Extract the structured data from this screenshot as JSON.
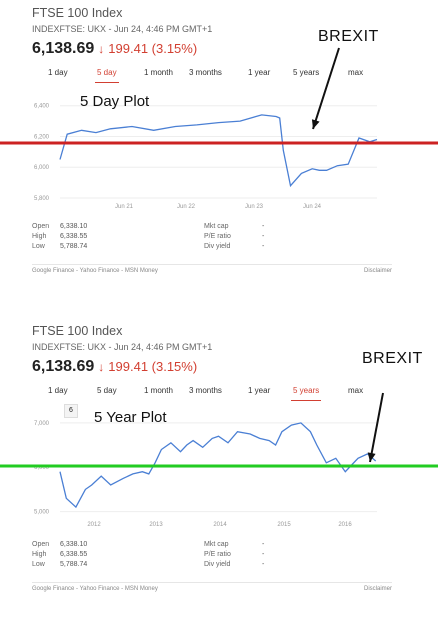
{
  "panels": [
    {
      "title": "FTSE 100 Index",
      "subtitle": "INDEXFTSE: UKX - Jun 24, 4:46 PM GMT+1",
      "price": "6,138.69",
      "arrow": "↓",
      "change": "199.41 (3.15%)",
      "tabs": [
        "1 day",
        "5 day",
        "1 month",
        "3 months",
        "1 year",
        "5 years",
        "max"
      ],
      "active_tab": "5 day",
      "plot_label": "5 Day Plot",
      "annotation": "BREXIT",
      "y_ticks": [
        "6,400",
        "6,200",
        "6,000",
        "5,800"
      ],
      "x_ticks": [
        "Jun 21",
        "Jun 22",
        "Jun 23",
        "Jun 24"
      ],
      "stats_left": [
        {
          "k": "Open",
          "v": "6,338.10"
        },
        {
          "k": "High",
          "v": "6,338.55"
        },
        {
          "k": "Low",
          "v": "5,788.74"
        }
      ],
      "stats_right": [
        {
          "k": "Mkt cap",
          "v": "-"
        },
        {
          "k": "P/E ratio",
          "v": "-"
        },
        {
          "k": "Div yield",
          "v": "-"
        }
      ],
      "footer_left": "Google Finance - Yahoo Finance - MSN Money",
      "footer_right": "Disclaimer",
      "reference_line_color": "#cc2222"
    },
    {
      "title": "FTSE 100 Index",
      "subtitle": "INDEXFTSE: UKX - Jun 24, 4:46 PM GMT+1",
      "price": "6,138.69",
      "arrow": "↓",
      "change": "199.41 (3.15%)",
      "tabs": [
        "1 day",
        "5 day",
        "1 month",
        "3 months",
        "1 year",
        "5 years",
        "max"
      ],
      "active_tab": "5 years",
      "badge": "6",
      "plot_label": "5 Year Plot",
      "annotation": "BREXIT",
      "y_ticks": [
        "7,000",
        "6,000",
        "5,000"
      ],
      "x_ticks": [
        "2012",
        "2013",
        "2014",
        "2015",
        "2016"
      ],
      "stats_left": [
        {
          "k": "Open",
          "v": "6,338.10"
        },
        {
          "k": "High",
          "v": "6,338.55"
        },
        {
          "k": "Low",
          "v": "5,788.74"
        }
      ],
      "stats_right": [
        {
          "k": "Mkt cap",
          "v": "-"
        },
        {
          "k": "P/E ratio",
          "v": "-"
        },
        {
          "k": "Div yield",
          "v": "-"
        }
      ],
      "footer_left": "Google Finance - Yahoo Finance - MSN Money",
      "footer_right": "Disclaimer",
      "reference_line_color": "#22cc22"
    }
  ],
  "colors": {
    "line": "#4a7fd4",
    "negative": "#d23f31",
    "grid": "#eeeeee"
  },
  "chart_data": [
    {
      "type": "line",
      "x_ticks": [
        "Jun 21",
        "Jun 22",
        "Jun 23",
        "Jun 24"
      ],
      "ylim": [
        5800,
        6450
      ],
      "reference_value": 6200,
      "series": [
        {
          "x": [
            0,
            0.1,
            0.3,
            0.5,
            0.7,
            1.0,
            1.3,
            1.6,
            1.9,
            2.2,
            2.5,
            2.8,
            3.0,
            3.05,
            3.1,
            3.2,
            3.35,
            3.5,
            3.6,
            3.7,
            3.85,
            4.0,
            4.15,
            4.3,
            4.4
          ],
          "y": [
            6050,
            6215,
            6240,
            6225,
            6250,
            6265,
            6240,
            6265,
            6275,
            6290,
            6300,
            6340,
            6330,
            6320,
            6110,
            5880,
            5960,
            5990,
            5980,
            5980,
            6010,
            6020,
            6190,
            6165,
            6180
          ]
        }
      ]
    },
    {
      "type": "line",
      "x_ticks": [
        "2012",
        "2013",
        "2014",
        "2015",
        "2016"
      ],
      "ylim": [
        4900,
        7200
      ],
      "reference_value": 6150,
      "series": [
        {
          "x": [
            2011.5,
            2011.6,
            2011.75,
            2011.9,
            2012.0,
            2012.15,
            2012.3,
            2012.5,
            2012.65,
            2012.8,
            2012.9,
            2013.0,
            2013.1,
            2013.25,
            2013.4,
            2013.5,
            2013.6,
            2013.75,
            2013.9,
            2014.0,
            2014.15,
            2014.3,
            2014.5,
            2014.65,
            2014.8,
            2014.9,
            2015.0,
            2015.15,
            2015.3,
            2015.45,
            2015.55,
            2015.7,
            2015.85,
            2016.0,
            2016.1,
            2016.2,
            2016.35,
            2016.48
          ],
          "y": [
            5900,
            5300,
            5100,
            5500,
            5600,
            5800,
            5600,
            5750,
            5850,
            5900,
            5850,
            6100,
            6400,
            6550,
            6350,
            6500,
            6600,
            6450,
            6650,
            6700,
            6550,
            6800,
            6750,
            6650,
            6600,
            6500,
            6800,
            6950,
            7000,
            6800,
            6500,
            6100,
            6200,
            5900,
            6050,
            6200,
            6300,
            6140
          ]
        }
      ]
    }
  ]
}
